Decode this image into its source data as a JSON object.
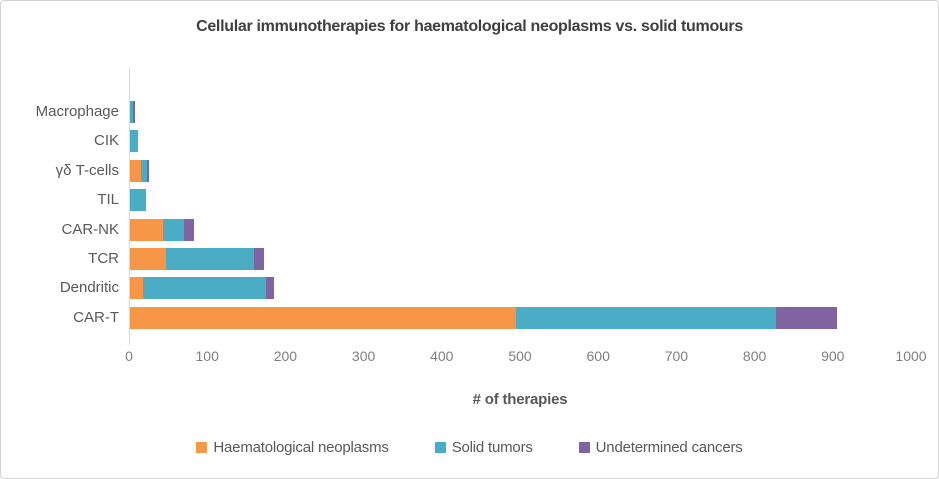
{
  "chart_data": {
    "type": "bar",
    "orientation": "horizontal",
    "stacked": true,
    "title": "Cellular immunotherapies for haematological neoplasms vs. solid tumours",
    "xlabel": "# of therapies",
    "ylabel": "",
    "categories": [
      "Macrophage",
      "CIK",
      "γδ T-cells",
      "TIL",
      "CAR-NK",
      "TCR",
      "Dendritic",
      "CAR-T"
    ],
    "series": [
      {
        "name": "Haematological neoplasms",
        "color": "#F79646",
        "values": [
          0,
          0,
          14,
          0,
          42,
          46,
          16,
          493
        ]
      },
      {
        "name": "Solid tumors",
        "color": "#4BACC6",
        "values": [
          4,
          10,
          8,
          20,
          27,
          113,
          158,
          333
        ]
      },
      {
        "name": "Undetermined cancers",
        "color": "#8064A2",
        "values": [
          2,
          0,
          2,
          0,
          13,
          12,
          10,
          78
        ]
      }
    ],
    "xlim": [
      0,
      1000
    ],
    "xticks": [
      0,
      100,
      200,
      300,
      400,
      500,
      600,
      700,
      800,
      900,
      1000
    ],
    "grid": false,
    "legend_position": "bottom",
    "axis_line_color": "#d9d9d9"
  }
}
